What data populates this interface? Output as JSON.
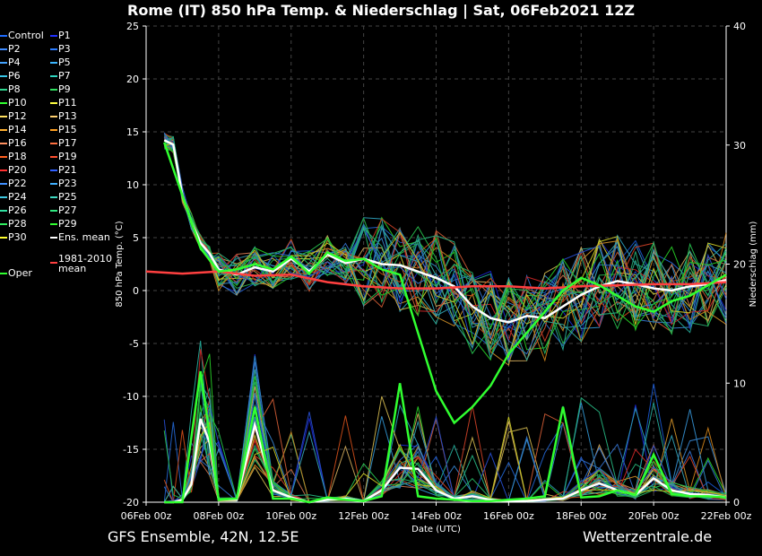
{
  "chart_data": {
    "type": "line",
    "title": "Rome  (IT)  850 hPa Temp. & Niederschlag | Sat, 06Feb2021 12Z",
    "xlabel": "Date (UTC)",
    "ylabel": "850 hPa Temp. (°C)",
    "y2label": "Niederschlag (mm)",
    "ylim": [
      -20,
      25
    ],
    "y2lim": [
      0,
      40
    ],
    "yticks": [
      25,
      20,
      15,
      10,
      5,
      0,
      -5,
      -10,
      -15,
      -20
    ],
    "y2ticks": [
      40,
      30,
      20,
      10,
      0
    ],
    "xlim": [
      0,
      16
    ],
    "xticks": [
      "06Feb 00z",
      "08Feb 00z",
      "10Feb 00z",
      "12Feb 00z",
      "14Feb 00z",
      "16Feb 00z",
      "18Feb 00z",
      "20Feb 00z",
      "22Feb 00z"
    ],
    "grid": true,
    "legend_position": "left",
    "series": [
      {
        "name": "Ens. mean",
        "color": "#ffffff",
        "x": [
          0.5,
          0.75,
          1,
          1.25,
          1.5,
          1.75,
          2,
          2.5,
          3,
          3.5,
          4,
          4.5,
          5,
          5.5,
          6,
          6.5,
          7,
          7.5,
          8,
          8.5,
          9,
          9.5,
          10,
          10.5,
          11,
          11.5,
          12,
          12.5,
          13,
          13.5,
          14,
          14.5,
          15,
          15.5,
          16
        ],
        "temp": [
          14.2,
          13.8,
          9.0,
          6.5,
          4.5,
          3.5,
          2.0,
          1.5,
          2.2,
          1.8,
          3.0,
          1.8,
          3.4,
          2.6,
          3.0,
          2.5,
          2.4,
          1.8,
          1.2,
          0.4,
          -1.5,
          -2.6,
          -3.0,
          -2.4,
          -2.6,
          -1.5,
          -0.4,
          0.4,
          0.9,
          0.6,
          0.2,
          0.0,
          0.4,
          0.6,
          1.0
        ],
        "precip": [
          0,
          0,
          0.2,
          1.5,
          7,
          5,
          0.2,
          0.2,
          6.5,
          1,
          0.4,
          0,
          0.2,
          0.3,
          0.1,
          1,
          2.9,
          2.8,
          1.0,
          0.3,
          0.5,
          0.2,
          0.1,
          0.1,
          0.2,
          0.3,
          1,
          1.6,
          1.0,
          0.6,
          2.0,
          1.0,
          0.7,
          0.6,
          0.4
        ]
      },
      {
        "name": "1981-2010 mean",
        "color": "#ff4040",
        "x": [
          0,
          1,
          2,
          3,
          4,
          5,
          6,
          7,
          8,
          9,
          10,
          11,
          12,
          13,
          14,
          15,
          16
        ],
        "temp": [
          1.8,
          1.6,
          1.8,
          1.4,
          1.5,
          0.8,
          0.4,
          0.2,
          0.2,
          0.4,
          0.4,
          0.2,
          0.4,
          0.5,
          0.6,
          0.6,
          0.8
        ]
      },
      {
        "name": "Oper",
        "color": "#30ff30",
        "x": [
          0.5,
          1,
          1.5,
          2,
          2.5,
          3,
          3.5,
          4,
          4.5,
          5,
          5.5,
          6,
          6.5,
          7,
          7.5,
          8,
          8.5,
          9,
          9.5,
          10,
          10.5,
          11,
          11.5,
          12,
          12.5,
          13,
          13.5,
          14,
          14.5,
          15,
          15.5,
          16
        ],
        "temp": [
          14.0,
          9.0,
          4.0,
          1.8,
          2.0,
          2.5,
          2.0,
          3.2,
          1.6,
          3.6,
          2.8,
          3.0,
          2.0,
          1.5,
          -4.0,
          -9.5,
          -12.5,
          -11.0,
          -9.0,
          -6.0,
          -4.0,
          -2.0,
          0.0,
          1.2,
          0.5,
          -0.5,
          -1.5,
          -2.0,
          -1.0,
          -0.5,
          0.5,
          1.5
        ],
        "precip": [
          0,
          0,
          11,
          0.2,
          0.3,
          8,
          0.3,
          0.3,
          0,
          0.4,
          0.2,
          0.1,
          0.5,
          10,
          0.5,
          0.3,
          0.2,
          0.1,
          0.1,
          0.2,
          0.3,
          0.5,
          8,
          0.4,
          0.5,
          1,
          0.6,
          4,
          0.7,
          0.5,
          0.5,
          0.4
        ]
      }
    ]
  },
  "legend": [
    {
      "label": "Control",
      "color": "#1e6bff"
    },
    {
      "label": "P1",
      "color": "#2030ff"
    },
    {
      "label": "P2",
      "color": "#3f8cff"
    },
    {
      "label": "P3",
      "color": "#2b7cff"
    },
    {
      "label": "P4",
      "color": "#44a3ff"
    },
    {
      "label": "P5",
      "color": "#3cb6ff"
    },
    {
      "label": "P6",
      "color": "#38c7e8"
    },
    {
      "label": "P7",
      "color": "#2fd6c0"
    },
    {
      "label": "P8",
      "color": "#30d890"
    },
    {
      "label": "P9",
      "color": "#30e060"
    },
    {
      "label": "P10",
      "color": "#30ff30"
    },
    {
      "label": "P11",
      "color": "#ffff40"
    },
    {
      "label": "P12",
      "color": "#ffe060"
    },
    {
      "label": "P13",
      "color": "#ffd070"
    },
    {
      "label": "P14",
      "color": "#ffb030"
    },
    {
      "label": "P15",
      "color": "#ffa020"
    },
    {
      "label": "P16",
      "color": "#ff9060"
    },
    {
      "label": "P17",
      "color": "#ff7040"
    },
    {
      "label": "P18",
      "color": "#ff6020"
    },
    {
      "label": "P19",
      "color": "#ff5030"
    },
    {
      "label": "P20",
      "color": "#ff3030"
    },
    {
      "label": "P21",
      "color": "#3060ff"
    },
    {
      "label": "P22",
      "color": "#4090ff"
    },
    {
      "label": "P23",
      "color": "#40b0ff"
    },
    {
      "label": "P24",
      "color": "#40c8e0"
    },
    {
      "label": "P25",
      "color": "#40d8c0"
    },
    {
      "label": "P26",
      "color": "#30e0a0"
    },
    {
      "label": "P27",
      "color": "#30e880"
    },
    {
      "label": "P28",
      "color": "#30f060"
    },
    {
      "label": "P29",
      "color": "#30ff30"
    },
    {
      "label": "P30",
      "color": "#ffff30"
    },
    {
      "label": "Ens. mean",
      "color": "#ffffff"
    },
    {
      "label": "Oper",
      "color": "#30ff30"
    },
    {
      "label": "1981-2010 mean",
      "color": "#ff4040"
    }
  ],
  "footer": {
    "model": "GFS Ensemble, 42N, 12.5E",
    "site": "Wetterzentrale.de"
  }
}
